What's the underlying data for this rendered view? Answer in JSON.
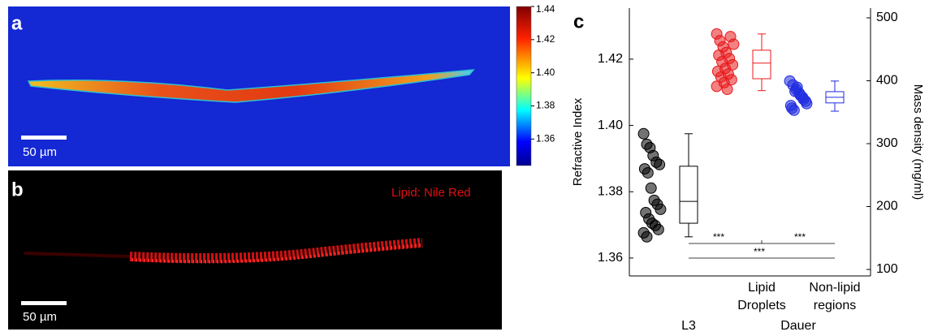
{
  "panel_a": {
    "label": "a",
    "scale_bar": "50 µm",
    "colorbar": {
      "lim": [
        1.344,
        1.44
      ],
      "ticks": [
        1.44,
        1.42,
        {
          "value": 1.4,
          "label": "1.40"
        },
        1.38,
        1.36
      ]
    }
  },
  "panel_b": {
    "label": "b",
    "stain": "Lipid: Nile Red",
    "scale_bar": "50 µm"
  },
  "chart_data": {
    "type": "box",
    "label": "c",
    "ylabel": "Refractive Index",
    "y2label": "Mass density (mg/ml)",
    "categories": [
      null,
      [
        "Lipid",
        "Droplets"
      ],
      [
        "Non-lipid",
        "regions"
      ]
    ],
    "group_labels": [
      "L3",
      "Dauer"
    ],
    "ylim": [
      1.3546,
      1.4354
    ],
    "yticks": [
      1.36,
      1.38,
      {
        "value": 1.4,
        "label": "1.40"
      },
      1.42
    ],
    "y2lim": [
      89.7,
      515.5
    ],
    "y2ticks": [
      100,
      200,
      300,
      400,
      500
    ],
    "series": [
      {
        "color": "#000000",
        "values": [
          1.3975,
          1.3943,
          1.3933,
          1.3909,
          1.3889,
          1.3882,
          1.3869,
          1.3857,
          1.3811,
          1.3774,
          1.3762,
          1.3747,
          1.3737,
          1.3718,
          1.3705,
          1.3698,
          1.3686,
          1.3676,
          1.3664
        ],
        "box": {
          "whisker_high": 1.3975,
          "q3": 1.3877,
          "median": 1.3771,
          "q1": 1.3705,
          "whisker_low": 1.3664
        }
      },
      {
        "color": "#e8191c",
        "values": [
          1.4276,
          1.4256,
          1.4237,
          1.422,
          1.4202,
          1.4183,
          1.4163,
          1.4146,
          1.4129,
          1.4109,
          1.4268,
          1.4245,
          1.4212,
          1.4192,
          1.4172,
          1.4155,
          1.4138,
          1.4118
        ],
        "box": {
          "whisker_high": 1.4276,
          "q3": 1.4227,
          "median": 1.4188,
          "q1": 1.4141,
          "whisker_low": 1.4105
        }
      },
      {
        "color": "#1f2be0",
        "values": [
          1.4134,
          1.4122,
          1.4109,
          1.4097,
          1.4085,
          1.4073,
          1.406,
          1.4046,
          1.4115,
          1.4091,
          1.4079,
          1.4066,
          1.4052,
          1.4103
        ],
        "box": {
          "whisker_high": 1.4134,
          "q3": 1.4102,
          "median": 1.4085,
          "q1": 1.4068,
          "whisker_low": 1.4043
        }
      }
    ],
    "annotations": [
      "***",
      "***",
      "***"
    ]
  }
}
